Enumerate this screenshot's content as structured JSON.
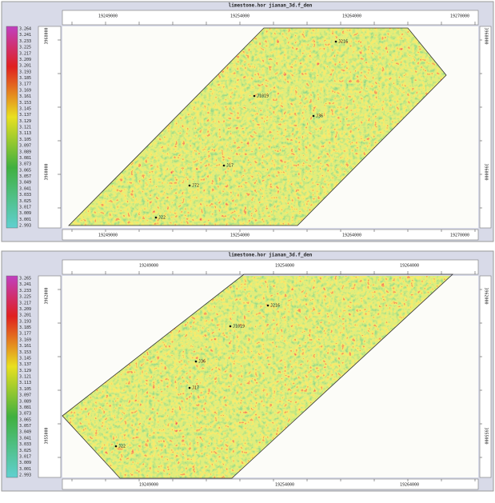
{
  "panels": [
    {
      "title": "limestone.hor jianan_3d.f_den",
      "colorbar_labels": [
        "3.264",
        "3.241",
        "3.233",
        "3.225",
        "3.217",
        "3.209",
        "3.201",
        "3.193",
        "3.185",
        "3.177",
        "3.169",
        "3.161",
        "3.153",
        "3.145",
        "3.137",
        "3.129",
        "3.121",
        "3.113",
        "3.105",
        "3.097",
        "3.089",
        "3.081",
        "3.073",
        "3.065",
        "3.057",
        "3.049",
        "3.041",
        "3.033",
        "3.025",
        "3.017",
        "3.009",
        "3.001",
        "2.993"
      ],
      "x_labels_top": [
        "19249000",
        "19254000",
        "19264000",
        "19270000"
      ],
      "x_labels_bottom": [
        "19249000",
        "19254000",
        "19264000",
        "19270000"
      ],
      "y_labels_left": [
        "3968000",
        "3960000"
      ],
      "y_labels_right": [
        "3968000",
        "3960000"
      ],
      "wells": [
        "J216",
        "J1019",
        "J36",
        "J17",
        "J72",
        "J22"
      ]
    },
    {
      "title": "limestone.hor jianan_3d.f_den",
      "colorbar_labels": [
        "3.265",
        "3.241",
        "3.233",
        "3.225",
        "3.217",
        "3.209",
        "3.201",
        "3.193",
        "3.185",
        "3.177",
        "3.169",
        "3.161",
        "3.153",
        "3.145",
        "3.137",
        "3.129",
        "3.121",
        "3.113",
        "3.105",
        "3.097",
        "3.089",
        "3.081",
        "3.073",
        "3.065",
        "3.057",
        "3.049",
        "3.041",
        "3.033",
        "3.025",
        "3.017",
        "3.009",
        "3.001",
        "2.993"
      ],
      "x_labels_top": [
        "19249000",
        "19254000",
        "19264000"
      ],
      "x_labels_bottom": [
        "19249000",
        "19254000",
        "19264000"
      ],
      "y_labels_left": [
        "3962000",
        "3955000"
      ],
      "y_labels_right": [
        "3962000",
        "3955000"
      ],
      "wells": [
        "J216",
        "J1019",
        "J36",
        "J17",
        "J22"
      ]
    }
  ]
}
